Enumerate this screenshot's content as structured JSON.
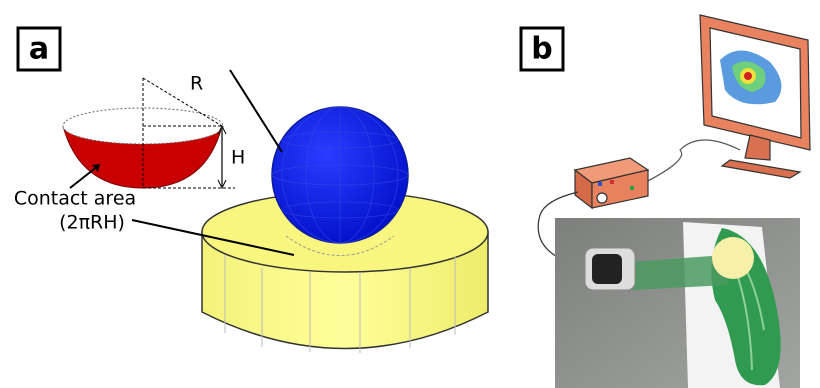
{
  "panel_a": {
    "label": "a",
    "radius_label": "R",
    "height_label": "H",
    "contact_area": {
      "label": "Contact area",
      "formula": "(2πRH)"
    }
  },
  "panel_b": {
    "label": "b"
  }
}
